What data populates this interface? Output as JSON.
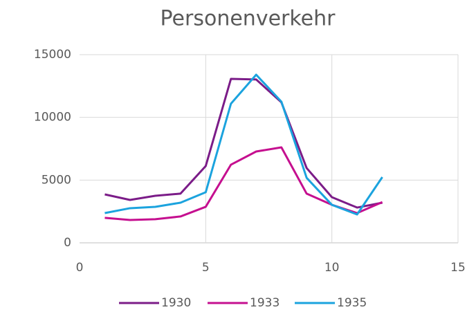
{
  "chart_data": {
    "type": "line",
    "title": "Personenverkehr",
    "x": [
      1,
      2,
      3,
      4,
      5,
      6,
      7,
      8,
      9,
      10,
      11,
      12
    ],
    "series": [
      {
        "name": "1930",
        "color": "#7b1c88",
        "values": [
          3860,
          3420,
          3750,
          3920,
          6120,
          13070,
          13020,
          11200,
          5960,
          3640,
          2810,
          3200
        ]
      },
      {
        "name": "1933",
        "color": "#c50f8f",
        "values": [
          1990,
          1820,
          1880,
          2100,
          2870,
          6230,
          7280,
          7610,
          3920,
          3030,
          2370,
          3250
        ]
      },
      {
        "name": "1935",
        "color": "#1ba3de",
        "values": [
          2370,
          2760,
          2870,
          3200,
          4030,
          11090,
          13400,
          11250,
          5180,
          3030,
          2260,
          5240
        ]
      }
    ],
    "xlim": [
      0,
      15
    ],
    "xticks": [
      0,
      5,
      10,
      15
    ],
    "ylim": [
      0,
      15000
    ],
    "yticks": [
      0,
      5000,
      10000,
      15000
    ],
    "grid": true,
    "legend": "bottom"
  }
}
